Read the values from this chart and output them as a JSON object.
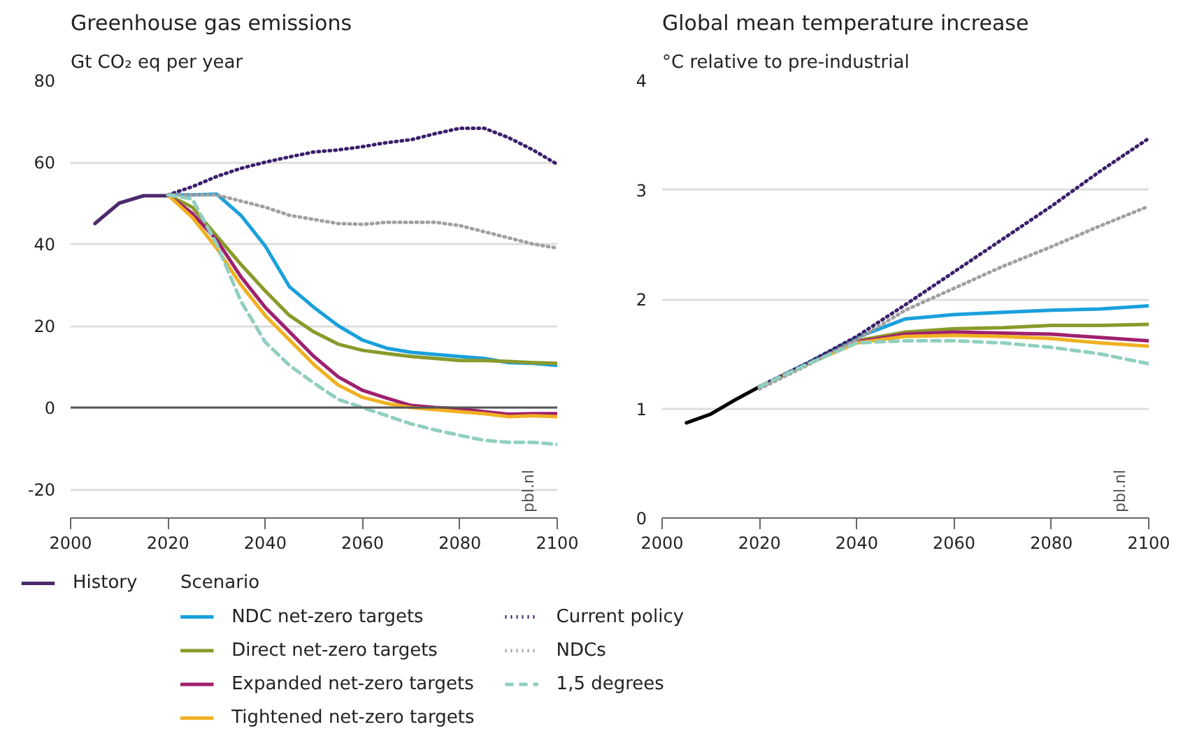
{
  "chart_data": [
    {
      "type": "line",
      "title": "Greenhouse gas emissions",
      "ylabel": "Gt CO₂ eq per year",
      "legend_title": "Scenario",
      "legend": "bottom",
      "grid": "y",
      "xlim": [
        2000,
        2100
      ],
      "xticks": [
        2000,
        2020,
        2040,
        2060,
        2080,
        2100
      ],
      "ylim": [
        -27,
        80
      ],
      "yticks": [
        -20,
        0,
        20,
        40,
        60,
        80
      ],
      "ref_lines": [
        {
          "axis": "y",
          "value": 0,
          "color": "#555555"
        }
      ],
      "annotations": [
        "pbl.nl"
      ],
      "series": [
        {
          "name": "History",
          "color": "#4b2a6b",
          "line_style": "solid",
          "x": [
            2005,
            2010,
            2015,
            2020
          ],
          "values": [
            45,
            50,
            51.8,
            51.8
          ]
        },
        {
          "name": "NDC net-zero targets",
          "color": "#1aa0dc",
          "line_style": "solid",
          "x": [
            2020,
            2025,
            2030,
            2035,
            2040,
            2045,
            2050,
            2055,
            2060,
            2065,
            2070,
            2075,
            2080,
            2085,
            2090,
            2095,
            2100
          ],
          "values": [
            52,
            52,
            52.2,
            47,
            39.5,
            29.5,
            24.5,
            20,
            16.5,
            14.5,
            13.5,
            13,
            12.5,
            12,
            11,
            10.8,
            10.3
          ]
        },
        {
          "name": "Direct net-zero targets",
          "color": "#8a9a2b",
          "line_style": "solid",
          "x": [
            2020,
            2025,
            2030,
            2035,
            2040,
            2045,
            2050,
            2055,
            2060,
            2065,
            2070,
            2075,
            2080,
            2085,
            2090,
            2095,
            2100
          ],
          "values": [
            52,
            49,
            42,
            35,
            28.5,
            22.5,
            18.5,
            15.5,
            14,
            13.2,
            12.5,
            12,
            11.5,
            11.5,
            11.3,
            11,
            10.8
          ]
        },
        {
          "name": "Expanded net-zero targets",
          "color": "#a0206e",
          "line_style": "solid",
          "x": [
            2020,
            2025,
            2030,
            2035,
            2040,
            2045,
            2050,
            2055,
            2060,
            2065,
            2070,
            2075,
            2080,
            2085,
            2090,
            2095,
            2100
          ],
          "values": [
            52,
            47.5,
            41,
            32,
            24.5,
            18.5,
            12.5,
            7.5,
            4.2,
            2.3,
            0.5,
            0,
            -0.3,
            -1,
            -1.6,
            -1.5,
            -1.5
          ]
        },
        {
          "name": "Tightened net-zero targets",
          "color": "#f0b020",
          "line_style": "solid",
          "x": [
            2020,
            2025,
            2030,
            2035,
            2040,
            2045,
            2050,
            2055,
            2060,
            2065,
            2070,
            2075,
            2080,
            2085,
            2090,
            2095,
            2100
          ],
          "values": [
            52,
            46.5,
            39,
            30,
            22.5,
            16.5,
            10.5,
            5.5,
            2.5,
            1,
            0,
            -0.5,
            -1,
            -1.5,
            -2.2,
            -2,
            -2.2
          ]
        },
        {
          "name": "Current policy",
          "color": "#3b1f6b",
          "line_style": "dotted",
          "x": [
            2020,
            2025,
            2030,
            2035,
            2040,
            2045,
            2050,
            2055,
            2060,
            2065,
            2070,
            2075,
            2080,
            2085,
            2090,
            2095,
            2100
          ],
          "values": [
            52,
            54,
            56.5,
            58.5,
            60,
            61.3,
            62.5,
            63,
            63.8,
            64.8,
            65.5,
            67,
            68.3,
            68.3,
            66,
            63,
            59.5
          ]
        },
        {
          "name": "NDCs",
          "color": "#a0a0a0",
          "line_style": "dotted",
          "x": [
            2020,
            2025,
            2030,
            2035,
            2040,
            2045,
            2050,
            2055,
            2060,
            2065,
            2070,
            2075,
            2080,
            2085,
            2090,
            2095,
            2100
          ],
          "values": [
            52,
            52,
            52,
            50.5,
            49,
            47,
            46,
            45,
            44.8,
            45.3,
            45.3,
            45.3,
            44.5,
            43,
            41.5,
            40,
            39
          ]
        },
        {
          "name": "1,5 degrees",
          "color": "#90cfc0",
          "line_style": "dashed",
          "x": [
            2020,
            2025,
            2030,
            2035,
            2040,
            2045,
            2050,
            2055,
            2060,
            2065,
            2070,
            2075,
            2080,
            2085,
            2090,
            2095,
            2100
          ],
          "values": [
            52,
            51,
            40,
            26,
            16,
            10.3,
            6,
            2,
            0,
            -2,
            -4,
            -5.5,
            -6.8,
            -8,
            -8.5,
            -8.5,
            -9
          ]
        }
      ]
    },
    {
      "type": "line",
      "title": "Global mean temperature increase",
      "ylabel": "°C relative to pre-industrial",
      "grid": "y",
      "xlim": [
        2000,
        2100
      ],
      "xticks": [
        2000,
        2020,
        2040,
        2060,
        2080,
        2100
      ],
      "ylim": [
        0,
        4
      ],
      "yticks": [
        0,
        1,
        2,
        3,
        4
      ],
      "annotations": [
        "pbl.nl"
      ],
      "series": [
        {
          "color": "#000000",
          "line_style": "solid",
          "x": [
            2005,
            2010,
            2015,
            2020
          ],
          "values": [
            0.87,
            0.95,
            1.08,
            1.2
          ]
        },
        {
          "color": "#1aa0dc",
          "line_style": "solid",
          "x": [
            2020,
            2030,
            2040,
            2050,
            2060,
            2070,
            2080,
            2090,
            2100
          ],
          "values": [
            1.2,
            1.42,
            1.65,
            1.82,
            1.86,
            1.88,
            1.9,
            1.91,
            1.94
          ]
        },
        {
          "color": "#8a9a2b",
          "line_style": "solid",
          "x": [
            2020,
            2030,
            2040,
            2050,
            2060,
            2070,
            2080,
            2090,
            2100
          ],
          "values": [
            1.2,
            1.41,
            1.62,
            1.7,
            1.73,
            1.74,
            1.76,
            1.76,
            1.77
          ]
        },
        {
          "color": "#a0206e",
          "line_style": "solid",
          "x": [
            2020,
            2030,
            2040,
            2050,
            2060,
            2070,
            2080,
            2090,
            2100
          ],
          "values": [
            1.2,
            1.41,
            1.61,
            1.68,
            1.7,
            1.69,
            1.68,
            1.65,
            1.62
          ]
        },
        {
          "color": "#f0b020",
          "line_style": "solid",
          "x": [
            2020,
            2030,
            2040,
            2050,
            2060,
            2070,
            2080,
            2090,
            2100
          ],
          "values": [
            1.2,
            1.41,
            1.6,
            1.66,
            1.67,
            1.66,
            1.64,
            1.6,
            1.57
          ]
        },
        {
          "color": "#3b1f6b",
          "line_style": "dotted",
          "x": [
            2020,
            2030,
            2040,
            2050,
            2060,
            2070,
            2080,
            2090,
            2100
          ],
          "values": [
            1.2,
            1.42,
            1.66,
            1.95,
            2.25,
            2.55,
            2.85,
            3.17,
            3.47
          ]
        },
        {
          "color": "#a0a0a0",
          "line_style": "dotted",
          "x": [
            2020,
            2030,
            2040,
            2050,
            2060,
            2070,
            2080,
            2090,
            2100
          ],
          "values": [
            1.18,
            1.4,
            1.63,
            1.9,
            2.1,
            2.3,
            2.48,
            2.67,
            2.85
          ]
        },
        {
          "color": "#90cfc0",
          "line_style": "dashed",
          "x": [
            2020,
            2030,
            2040,
            2050,
            2060,
            2070,
            2080,
            2090,
            2100
          ],
          "values": [
            1.2,
            1.41,
            1.6,
            1.62,
            1.62,
            1.6,
            1.56,
            1.5,
            1.41
          ]
        }
      ]
    }
  ]
}
